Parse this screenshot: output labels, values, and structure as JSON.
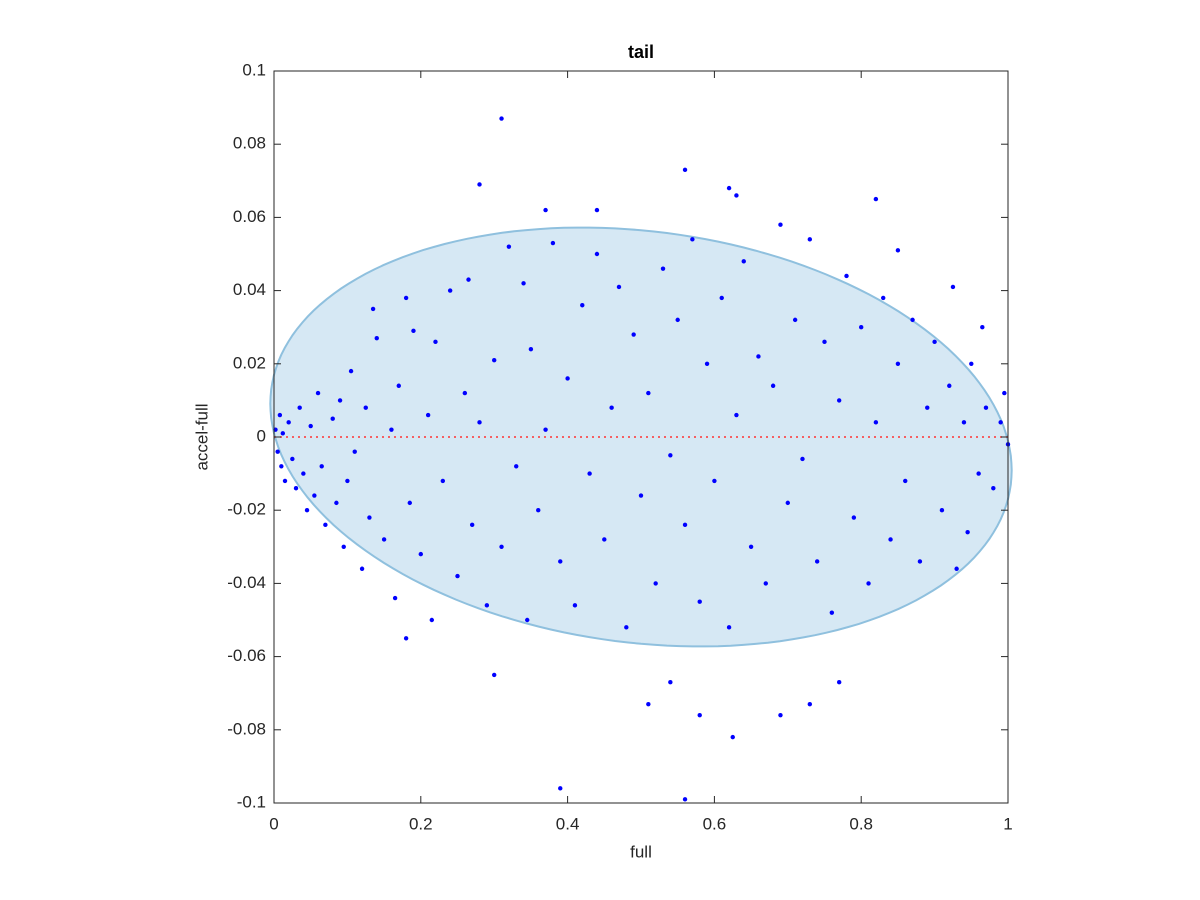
{
  "chart_data": {
    "type": "scatter",
    "title": "tail",
    "xlabel": "full",
    "ylabel": "accel-full",
    "xlim": [
      0,
      1
    ],
    "ylim": [
      -0.1,
      0.1
    ],
    "xticks": [
      0,
      0.2,
      0.4,
      0.6,
      0.8,
      1
    ],
    "yticks": [
      -0.1,
      -0.08,
      -0.06,
      -0.04,
      -0.02,
      0,
      0.02,
      0.04,
      0.06,
      0.08,
      0.1
    ],
    "grid": false,
    "color": "#0000ff",
    "ellipse": {
      "center": [
        0.5,
        0
      ],
      "radii": [
        0.505,
        0.0565
      ],
      "shear": -0.018,
      "fill": "#d6e8f4",
      "stroke": "#8fc0de"
    },
    "hline": {
      "y": 0,
      "color": "#ff3333"
    },
    "series": [
      {
        "name": "points",
        "color": "#0000ff",
        "x": [
          0.002,
          0.005,
          0.008,
          0.01,
          0.012,
          0.015,
          0.02,
          0.025,
          0.03,
          0.035,
          0.04,
          0.045,
          0.05,
          0.055,
          0.06,
          0.065,
          0.07,
          0.08,
          0.085,
          0.09,
          0.095,
          0.1,
          0.105,
          0.11,
          0.12,
          0.125,
          0.13,
          0.135,
          0.14,
          0.15,
          0.16,
          0.165,
          0.17,
          0.18,
          0.185,
          0.19,
          0.2,
          0.21,
          0.215,
          0.22,
          0.23,
          0.24,
          0.25,
          0.26,
          0.265,
          0.27,
          0.28,
          0.29,
          0.3,
          0.31,
          0.32,
          0.33,
          0.34,
          0.345,
          0.35,
          0.36,
          0.37,
          0.38,
          0.39,
          0.4,
          0.41,
          0.42,
          0.43,
          0.44,
          0.45,
          0.46,
          0.47,
          0.48,
          0.49,
          0.5,
          0.51,
          0.52,
          0.53,
          0.54,
          0.55,
          0.56,
          0.57,
          0.58,
          0.59,
          0.6,
          0.61,
          0.62,
          0.63,
          0.64,
          0.65,
          0.66,
          0.67,
          0.68,
          0.69,
          0.7,
          0.71,
          0.72,
          0.73,
          0.74,
          0.75,
          0.76,
          0.77,
          0.78,
          0.79,
          0.8,
          0.81,
          0.82,
          0.83,
          0.84,
          0.85,
          0.86,
          0.87,
          0.88,
          0.89,
          0.9,
          0.91,
          0.92,
          0.93,
          0.94,
          0.95,
          0.96,
          0.97,
          0.98,
          0.99,
          1.0,
          0.995,
          0.965,
          0.925,
          0.945,
          0.31,
          0.28,
          0.56,
          0.62,
          0.63,
          0.82,
          0.39,
          0.56,
          0.625,
          0.58,
          0.69,
          0.3,
          0.51,
          0.54,
          0.37,
          0.44,
          0.85,
          0.73,
          0.77,
          0.18
        ],
        "y": [
          0.002,
          -0.004,
          0.006,
          -0.008,
          0.001,
          -0.012,
          0.004,
          -0.006,
          -0.014,
          0.008,
          -0.01,
          -0.02,
          0.003,
          -0.016,
          0.012,
          -0.008,
          -0.024,
          0.005,
          -0.018,
          0.01,
          -0.03,
          -0.012,
          0.018,
          -0.004,
          -0.036,
          0.008,
          -0.022,
          0.035,
          0.027,
          -0.028,
          0.002,
          -0.044,
          0.014,
          0.038,
          -0.018,
          0.029,
          -0.032,
          0.006,
          -0.05,
          0.026,
          -0.012,
          0.04,
          -0.038,
          0.012,
          0.043,
          -0.024,
          0.004,
          -0.046,
          0.021,
          -0.03,
          0.052,
          -0.008,
          0.042,
          -0.05,
          0.024,
          -0.02,
          0.002,
          0.053,
          -0.034,
          0.016,
          -0.046,
          0.036,
          -0.01,
          0.05,
          -0.028,
          0.008,
          0.041,
          -0.052,
          0.028,
          -0.016,
          0.012,
          -0.04,
          0.046,
          -0.005,
          0.032,
          -0.024,
          0.054,
          -0.045,
          0.02,
          -0.012,
          0.038,
          -0.052,
          0.006,
          0.048,
          -0.03,
          0.022,
          -0.04,
          0.014,
          0.058,
          -0.018,
          0.032,
          -0.006,
          0.054,
          -0.034,
          0.026,
          -0.048,
          0.01,
          0.044,
          -0.022,
          0.03,
          -0.04,
          0.004,
          0.038,
          -0.028,
          0.02,
          -0.012,
          0.032,
          -0.034,
          0.008,
          0.026,
          -0.02,
          0.014,
          -0.036,
          0.004,
          0.02,
          -0.01,
          0.008,
          -0.014,
          0.004,
          -0.002,
          0.012,
          0.03,
          0.041,
          -0.026,
          0.087,
          0.069,
          0.073,
          0.068,
          0.066,
          0.065,
          -0.096,
          -0.099,
          -0.082,
          -0.076,
          -0.076,
          -0.065,
          -0.073,
          -0.067,
          0.062,
          0.062,
          0.051,
          -0.073,
          -0.067,
          -0.055
        ]
      }
    ]
  }
}
